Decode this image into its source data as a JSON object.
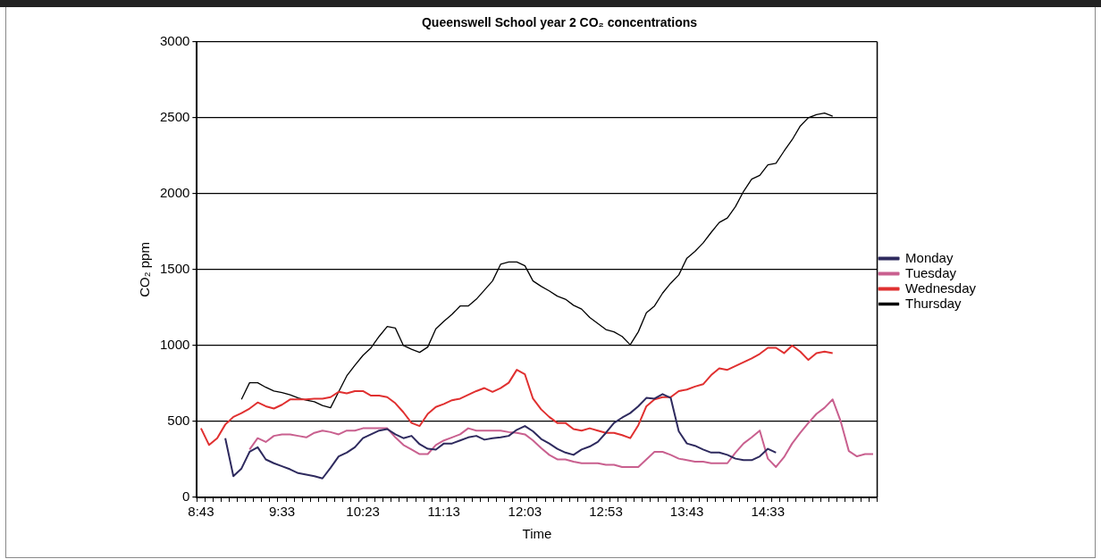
{
  "chart_data": {
    "type": "line",
    "title": "Queenswell School year 2 CO₂ concentrations",
    "xlabel": "Time",
    "ylabel": "CO₂ ppm",
    "categories": [
      "8:43",
      null,
      null,
      null,
      null,
      null,
      null,
      null,
      null,
      null,
      "9:33",
      null,
      null,
      null,
      null,
      null,
      null,
      null,
      null,
      null,
      "10:23",
      null,
      null,
      null,
      null,
      null,
      null,
      null,
      null,
      null,
      "11:13",
      null,
      null,
      null,
      null,
      null,
      null,
      null,
      null,
      null,
      "12:03",
      null,
      null,
      null,
      null,
      null,
      null,
      null,
      null,
      null,
      "12:53",
      null,
      null,
      null,
      null,
      null,
      null,
      null,
      null,
      null,
      "13:43",
      null,
      null,
      null,
      null,
      null,
      null,
      null,
      null,
      null,
      "14:33",
      null,
      null,
      null,
      null,
      null,
      null,
      null,
      null,
      null,
      null,
      null,
      null,
      null
    ],
    "series": [
      {
        "name": "Monday",
        "color": "#2e2a5e",
        "values": [
          null,
          null,
          null,
          390,
          140,
          190,
          300,
          330,
          250,
          225,
          205,
          185,
          160,
          150,
          140,
          125,
          195,
          270,
          295,
          330,
          390,
          415,
          440,
          450,
          415,
          390,
          405,
          350,
          320,
          315,
          355,
          355,
          375,
          395,
          405,
          380,
          390,
          395,
          405,
          445,
          470,
          435,
          385,
          355,
          320,
          295,
          280,
          315,
          335,
          365,
          425,
          490,
          525,
          555,
          600,
          655,
          650,
          680,
          655,
          435,
          355,
          340,
          315,
          295,
          295,
          280,
          255,
          245,
          245,
          270,
          320,
          295,
          null,
          null,
          null,
          null,
          null,
          null,
          null,
          null,
          null,
          null,
          null,
          null
        ]
      },
      {
        "name": "Tuesday",
        "color": "#c9608f",
        "values": [
          null,
          null,
          null,
          null,
          null,
          null,
          315,
          390,
          365,
          405,
          415,
          415,
          405,
          395,
          425,
          440,
          430,
          415,
          440,
          440,
          455,
          455,
          455,
          455,
          395,
          345,
          315,
          285,
          285,
          345,
          375,
          395,
          415,
          455,
          440,
          440,
          440,
          440,
          430,
          425,
          415,
          375,
          325,
          280,
          250,
          250,
          235,
          225,
          225,
          225,
          215,
          215,
          200,
          200,
          200,
          250,
          300,
          300,
          280,
          255,
          245,
          235,
          235,
          225,
          225,
          225,
          295,
          355,
          395,
          440,
          255,
          200,
          265,
          355,
          425,
          490,
          550,
          590,
          645,
          500,
          305,
          270,
          285,
          285
        ]
      },
      {
        "name": "Wednesday",
        "color": "#e03030",
        "values": [
          455,
          345,
          390,
          480,
          530,
          555,
          585,
          625,
          600,
          585,
          610,
          645,
          645,
          645,
          650,
          650,
          660,
          695,
          685,
          700,
          700,
          670,
          670,
          660,
          620,
          560,
          490,
          470,
          550,
          595,
          615,
          640,
          650,
          675,
          700,
          720,
          695,
          720,
          755,
          840,
          810,
          650,
          580,
          530,
          490,
          490,
          450,
          440,
          455,
          440,
          425,
          425,
          410,
          390,
          475,
          600,
          645,
          660,
          660,
          700,
          710,
          730,
          745,
          805,
          850,
          840,
          865,
          890,
          915,
          945,
          985,
          985,
          950,
          1000,
          960,
          905,
          950,
          960,
          950,
          null,
          null,
          null,
          null,
          null
        ]
      },
      {
        "name": "Thursday",
        "color": "#000000",
        "values": [
          null,
          null,
          null,
          null,
          null,
          645,
          755,
          755,
          725,
          700,
          690,
          675,
          655,
          640,
          630,
          605,
          590,
          695,
          800,
          870,
          935,
          985,
          1060,
          1125,
          1115,
          1000,
          975,
          955,
          990,
          1110,
          1160,
          1205,
          1260,
          1260,
          1305,
          1365,
          1425,
          1535,
          1550,
          1550,
          1525,
          1425,
          1390,
          1360,
          1325,
          1305,
          1265,
          1240,
          1185,
          1145,
          1105,
          1090,
          1060,
          1005,
          1090,
          1215,
          1260,
          1345,
          1410,
          1465,
          1575,
          1620,
          1675,
          1745,
          1810,
          1840,
          1915,
          2015,
          2095,
          2120,
          2190,
          2200,
          2280,
          2355,
          2445,
          2500,
          2520,
          2530,
          2510,
          null,
          null,
          null,
          null,
          null
        ]
      }
    ],
    "ylim": [
      0,
      3000
    ],
    "yticks": [
      0,
      500,
      1000,
      1500,
      2000,
      2500,
      3000
    ],
    "grid": "y",
    "legend": "right",
    "marker": "none",
    "line_style": "solid"
  }
}
